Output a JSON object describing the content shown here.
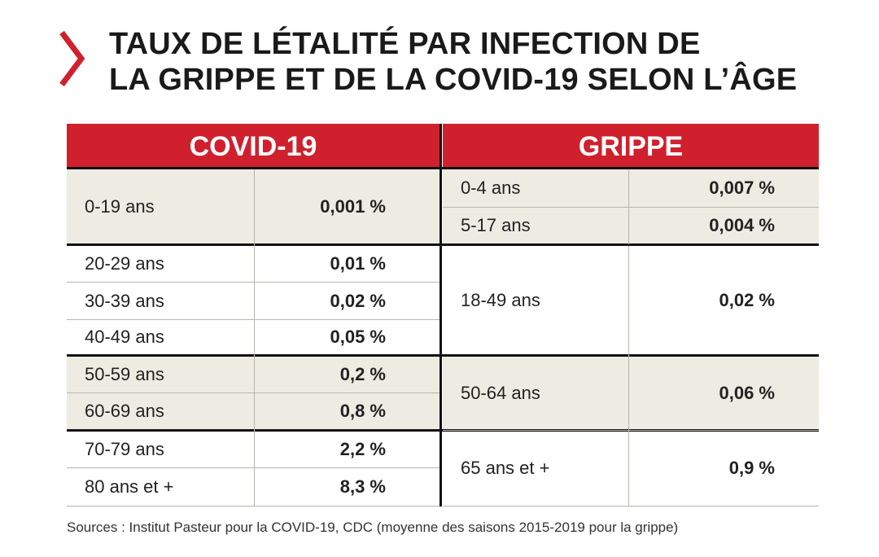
{
  "title_lines": [
    "TAUX DE LÉTALITÉ PAR INFECTION DE",
    "LA GRIPPE ET DE LA COVID-19 SELON L’ÂGE"
  ],
  "colors": {
    "accent": "#d0202e",
    "shaded_row": "#eeebe3",
    "rule": "#111111"
  },
  "icons": {
    "title_marker": "chevron-right-icon"
  },
  "chart_data": {
    "type": "table",
    "columns": [
      "COVID-19",
      "GRIPPE"
    ],
    "covid19": [
      {
        "age": "0-19 ans",
        "rate": "0,001 %"
      },
      {
        "age": "20-29 ans",
        "rate": "0,01 %"
      },
      {
        "age": "30-39 ans",
        "rate": "0,02 %"
      },
      {
        "age": "40-49 ans",
        "rate": "0,05 %"
      },
      {
        "age": "50-59 ans",
        "rate": "0,2 %"
      },
      {
        "age": "60-69 ans",
        "rate": "0,8 %"
      },
      {
        "age": "70-79 ans",
        "rate": "2,2 %"
      },
      {
        "age": "80 ans et +",
        "rate": "8,3 %"
      }
    ],
    "grippe": [
      {
        "age": "0-4 ans",
        "rate": "0,007 %"
      },
      {
        "age": "5-17 ans",
        "rate": "0,004 %"
      },
      {
        "age": "18-49 ans",
        "rate": "0,02 %"
      },
      {
        "age": "50-64 ans",
        "rate": "0,06 %"
      },
      {
        "age": "65 ans et +",
        "rate": "0,9 %"
      }
    ]
  },
  "source": "Sources : Institut Pasteur pour la COVID-19, CDC (moyenne des saisons 2015-2019 pour la grippe)"
}
